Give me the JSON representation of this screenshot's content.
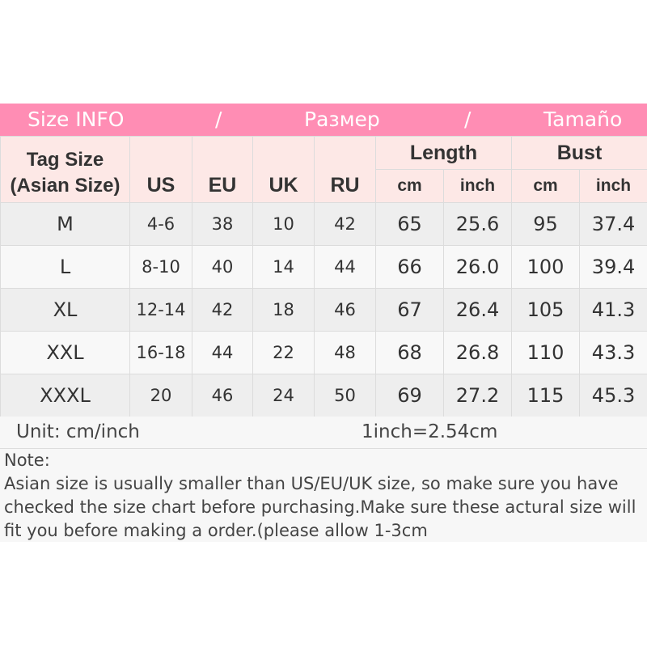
{
  "banner": {
    "left": "Size INFO",
    "sep1": "/",
    "middle": "Размер",
    "sep2": "/",
    "right": "Tamaño"
  },
  "header": {
    "tag_line1": "Tag Size",
    "tag_line2": "(Asian Size)",
    "us": "US",
    "eu": "EU",
    "uk": "UK",
    "ru": "RU",
    "length": "Length",
    "bust": "Bust",
    "length_cm": "cm",
    "length_inch": "inch",
    "bust_cm": "cm",
    "bust_inch": "inch"
  },
  "rows": [
    [
      "M",
      "4-6",
      "38",
      "10",
      "42",
      "65",
      "25.6",
      "95",
      "37.4"
    ],
    [
      "L",
      "8-10",
      "40",
      "14",
      "44",
      "66",
      "26.0",
      "100",
      "39.4"
    ],
    [
      "XL",
      "12-14",
      "42",
      "18",
      "46",
      "67",
      "26.4",
      "105",
      "41.3"
    ],
    [
      "XXL",
      "16-18",
      "44",
      "22",
      "48",
      "68",
      "26.8",
      "110",
      "43.3"
    ],
    [
      "XXXL",
      "20",
      "46",
      "24",
      "50",
      "69",
      "27.2",
      "115",
      "45.3"
    ]
  ],
  "unit": {
    "label": "Unit: cm/inch",
    "conversion": "1inch=2.54cm"
  },
  "note": {
    "title": "Note:",
    "text": "Asian size is usually smaller than US/EU/UK size, so make sure you have checked the size chart before purchasing.Make sure these actural size will fit you before making a order.(please allow 1-3cm"
  },
  "colors": {
    "banner": "#ff8db4",
    "header_bg": "#fde8e6",
    "row_odd": "#eeeeee",
    "row_even": "#f8f8f8"
  }
}
